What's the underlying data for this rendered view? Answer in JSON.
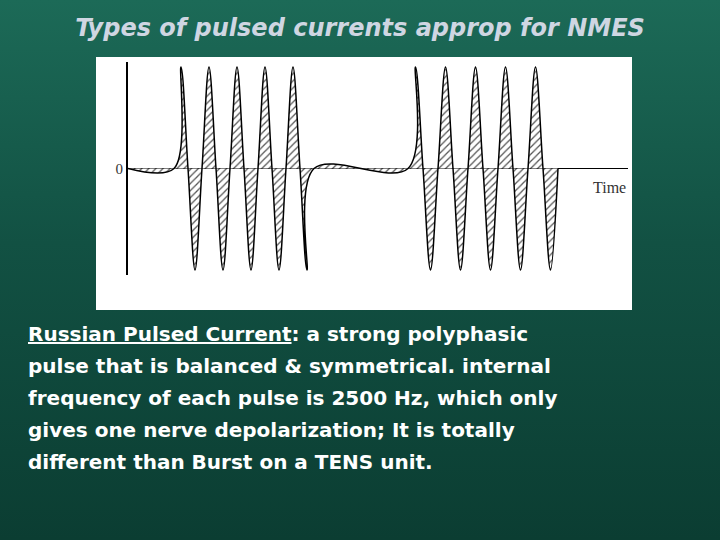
{
  "slide": {
    "title": "Types of pulsed currents approp for NMES",
    "body": {
      "term": "Russian Pulsed Current",
      "lines": [
        ": a strong polyphasic",
        "pulse that is balanced & symmetrical. internal",
        "frequency of each pulse is 2500 Hz, which only",
        "gives one nerve depolarization;  It is totally",
        "different than Burst on a TENS unit."
      ]
    }
  },
  "chart_data": {
    "type": "line",
    "x_label": "Time",
    "x": [
      0,
      46,
      53,
      60,
      67,
      74,
      81,
      88,
      95,
      102,
      109,
      116,
      123,
      130,
      137,
      144,
      151,
      158,
      165,
      172,
      179,
      186,
      280,
      287.5,
      295,
      302.5,
      310,
      317.5,
      325,
      332.5,
      340,
      347.5,
      355,
      362.5,
      370,
      377.5,
      385,
      392.5,
      400,
      407.5,
      415,
      422.5,
      430
    ],
    "values": [
      0,
      0,
      1,
      0,
      -1,
      0,
      1,
      0,
      -1,
      0,
      1,
      0,
      -1,
      0,
      1,
      0,
      -1,
      0,
      1,
      0,
      -1,
      0,
      0,
      1,
      0,
      -1,
      0,
      1,
      0,
      -1,
      0,
      1,
      0,
      -1,
      0,
      1,
      0,
      -1,
      0,
      1,
      0,
      -1,
      0
    ],
    "xlim": [
      0,
      500
    ],
    "ylim": [
      -1.05,
      1.05
    ],
    "yticks": [
      0
    ],
    "tick_labels": "y",
    "color": "#000000"
  }
}
